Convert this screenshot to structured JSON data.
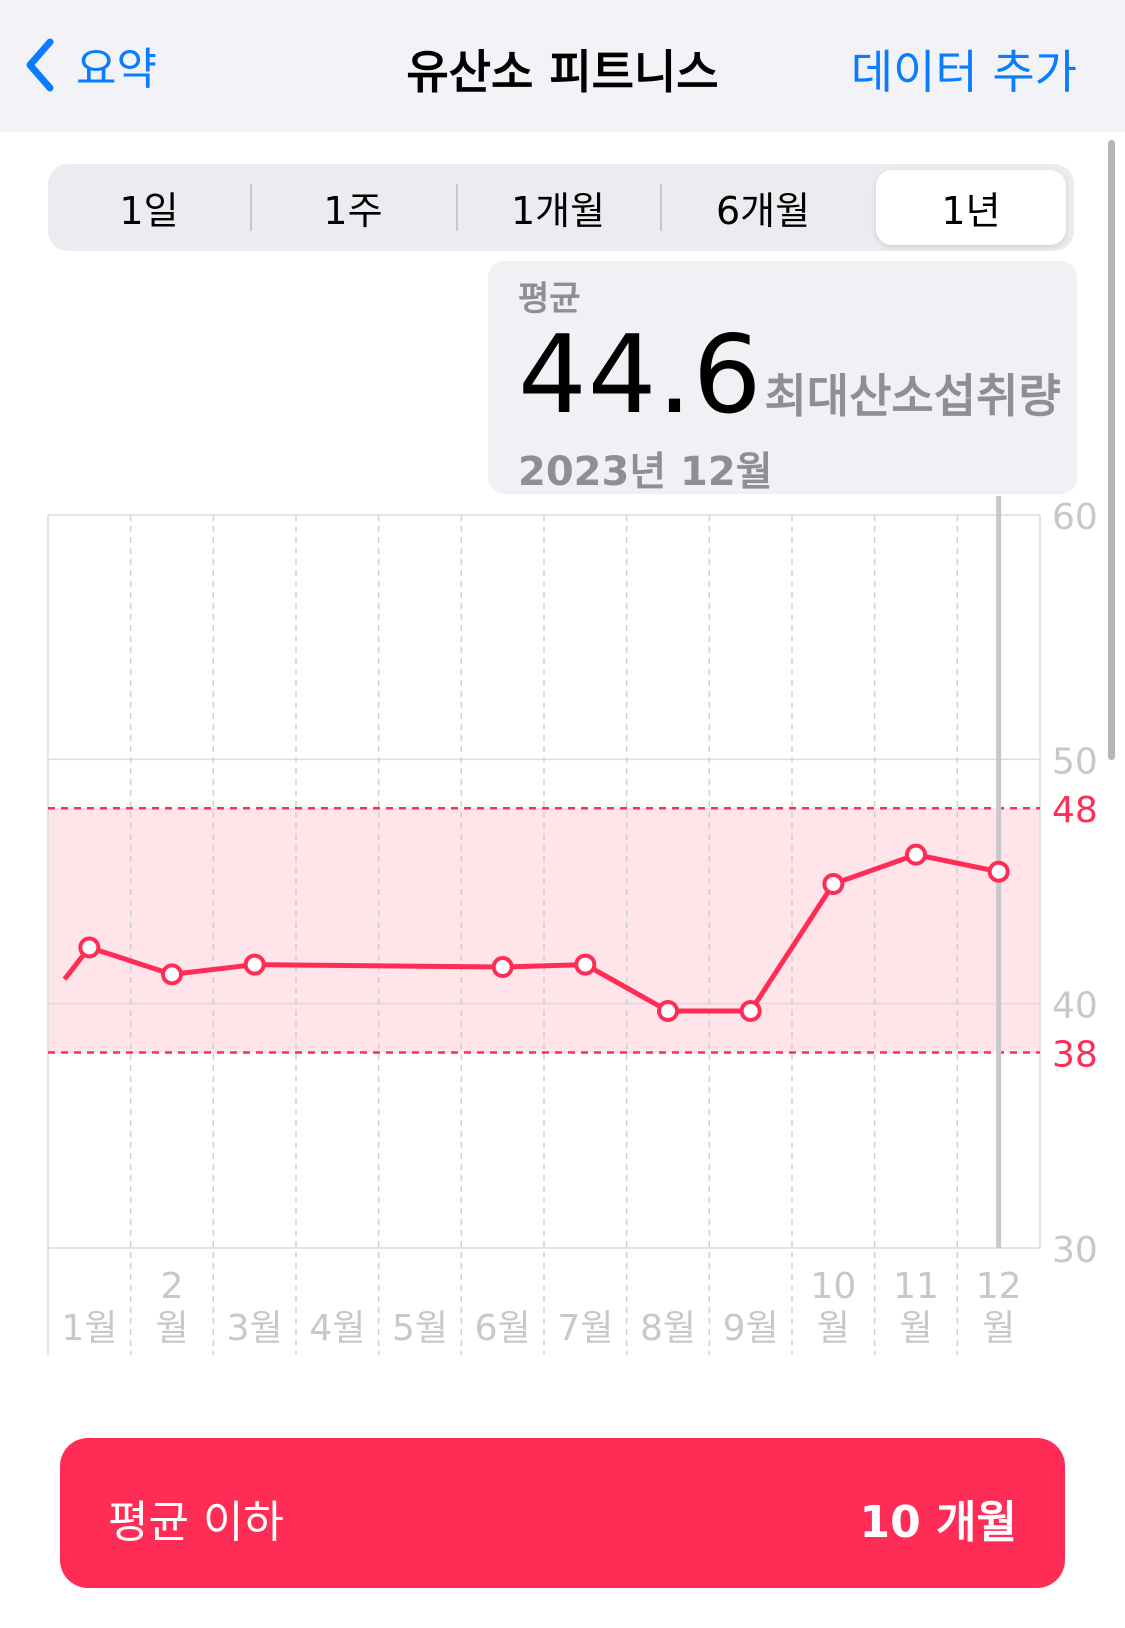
{
  "nav": {
    "back_label": "요약",
    "title": "유산소 피트니스",
    "add_label": "데이터 추가"
  },
  "segments": [
    "1일",
    "1주",
    "1개월",
    "6개월",
    "1년"
  ],
  "selected_segment": "1년",
  "summary": {
    "label": "평균",
    "value": "44.6",
    "unit": "최대산소섭취량",
    "period": "2023년 12월"
  },
  "chart_data": {
    "type": "line",
    "categories": [
      [
        "1월"
      ],
      [
        "2",
        "월"
      ],
      [
        "3월"
      ],
      [
        "4월"
      ],
      [
        "5월"
      ],
      [
        "6월"
      ],
      [
        "7월"
      ],
      [
        "8월"
      ],
      [
        "9월"
      ],
      [
        "10",
        "월"
      ],
      [
        "11",
        "월"
      ],
      [
        "12",
        "월"
      ]
    ],
    "y_ticks": [
      "60",
      "50",
      "40",
      "30"
    ],
    "ylim": [
      30,
      60
    ],
    "range_band": {
      "low": 38,
      "high": 48,
      "low_label": "38",
      "high_label": "48"
    },
    "series": [
      {
        "x": [
          0.2,
          0.5,
          1.5,
          2.5,
          5.5,
          6.5,
          7.5,
          8.5,
          9.5,
          10.5,
          11.5
        ],
        "values": [
          41.0,
          42.3,
          41.2,
          41.6,
          41.5,
          41.6,
          39.7,
          39.7,
          44.9,
          46.1,
          45.4
        ]
      }
    ],
    "line_color": "#ff2d55",
    "band_color": "#ffe4e9",
    "grid": true
  },
  "below_average": {
    "label": "평균 이하",
    "value": "10 개월"
  }
}
